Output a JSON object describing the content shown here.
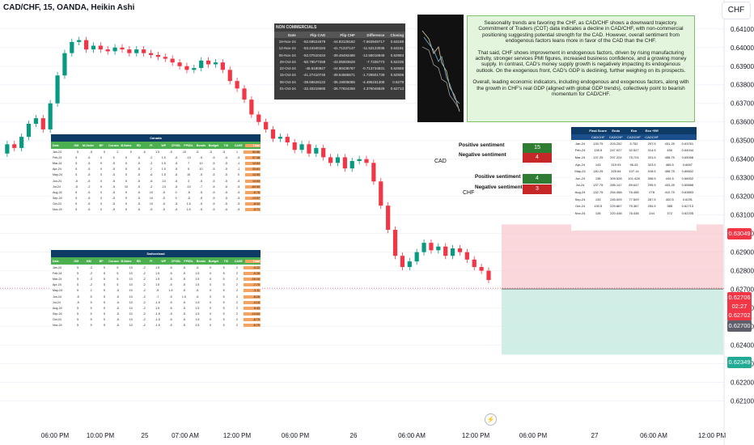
{
  "header": {
    "symbol": "CAD/CHF, 15, OANDA, Heikin Ashi",
    "currency": "CHF"
  },
  "chart_data": {
    "type": "candlestick",
    "y_ticks": [
      "0.64100",
      "0.64000",
      "0.63900",
      "0.63800",
      "0.63700",
      "0.63600",
      "0.63500",
      "0.63400",
      "0.63300",
      "0.63200",
      "0.63100",
      "0.63000",
      "0.62900",
      "0.62800",
      "0.62700",
      "0.62600",
      "0.62500",
      "0.62400",
      "0.62300",
      "0.62200",
      "0.62100"
    ],
    "ylim": [
      0.6205,
      0.6416
    ],
    "x_ticks": [
      "06:00 PM",
      "10:00 PM",
      "25",
      "07:00 AM",
      "12:00 PM",
      "06:00 PM",
      "26",
      "06:00 AM",
      "12:00 PM",
      "06:00 PM",
      "27",
      "06:00 AM",
      "12:00 PM"
    ],
    "price_path": [
      0.6343,
      0.6348,
      0.6346,
      0.6352,
      0.6359,
      0.6362,
      0.6356,
      0.637,
      0.6385,
      0.6397,
      0.6403,
      0.6404,
      0.6399,
      0.6401,
      0.6399,
      0.6398,
      0.64,
      0.6399,
      0.6397,
      0.6399,
      0.6397,
      0.6396,
      0.6395,
      0.6394,
      0.6392,
      0.639,
      0.6388,
      0.6389,
      0.6393,
      0.6391,
      0.6392,
      0.6388,
      0.6382,
      0.6378,
      0.6372,
      0.6364,
      0.636,
      0.6356,
      0.6351,
      0.6352,
      0.6349,
      0.6345,
      0.6348,
      0.6343,
      0.6346,
      0.6341,
      0.6338,
      0.6341,
      0.6335,
      0.6339,
      0.634,
      0.6338,
      0.6328,
      0.6315,
      0.6302,
      0.6288,
      0.6282,
      0.6285,
      0.629,
      0.6295,
      0.6291,
      0.6293,
      0.6288,
      0.6292,
      0.629,
      0.6286,
      0.6282,
      0.628,
      0.6275
    ],
    "price_labels": [
      {
        "value": "0.63049",
        "color": "#f23645"
      },
      {
        "value": "0.62706",
        "color": "#f23645"
      },
      {
        "value": "02:27",
        "color": "#f23645"
      },
      {
        "value": "0.62702",
        "color": "#f23645"
      },
      {
        "value": "0.62700",
        "color": "#5d606b"
      },
      {
        "value": "0.62349",
        "color": "#22ab94"
      }
    ],
    "position": {
      "stop": 0.63049,
      "entry": 0.62702,
      "target": 0.62349
    }
  },
  "non_commercials": {
    "title": "NON COMMERCIALS",
    "columns": [
      "Date",
      "Flip CAD",
      "Flip CHF",
      "Difference",
      "Closing"
    ],
    "rows": [
      [
        "19-Nov-24",
        "-52.69524679",
        "-44.83129182",
        "-7.863949717",
        "0.63189"
      ],
      [
        "12-Nov-24",
        "-53.24340183",
        "-41.71237147",
        "-11.53123036",
        "0.63191"
      ],
      [
        "05-Nov-24",
        "-52.07510434",
        "-39.49493486",
        "-12.58016948",
        "0.62993"
      ],
      [
        "29-Oct-24",
        "-50.78577268",
        "-43.05003628",
        "-7.7335773",
        "0.62235"
      ],
      [
        "22-Oct-24",
        "-45.6180927",
        "-44.90435787",
        "-0.713734831",
        "0.62558"
      ],
      [
        "15-Oct-24",
        "-41.27410745",
        "-39.54565571",
        "-1.728501739",
        "0.62508"
      ],
      [
        "08-Oct-24",
        "-39.68528122",
        "-35.19005085",
        "-4.495231308",
        "0.6279"
      ],
      [
        "01-Oct-24",
        "-32.40219585",
        "-36.77824268",
        "4.376046829",
        "0.62713"
      ]
    ]
  },
  "note": {
    "p1": "Seasonality trends are favoring the CHF, as CAD/CHF shows a downward trajectory. Commitment of Traders (COT) data indicates a decline in CAD/CHF, with non-commercial positioning suggesting potential strength for the CAD. However, overall sentiment from endogenous factors leans more in favor of the CAD than the CHF.",
    "p2": "That said, CHF shows improvement in endogenous factors, driven by rising manufacturing activity, stronger services PMI figures, increased business confidence, and a growing money supply. In contrast, CAD's money supply growth is negatively impacting its endogenous outlook. On the exogenous front, CAD's GDP is declining, further weighing on its prospects.",
    "p3": "Overall, leading economic indicators, including endogenous and exogenous factors, along with the growth in CHF's real GDP (aligned with global GDP trends), collectively point to bearish momentum for CAD/CHF."
  },
  "sentiment": {
    "cad": {
      "label": "CAD",
      "pos_label": "Positive sentiment",
      "neg_label": "Negative sentiment",
      "pos": "15",
      "neg": "4"
    },
    "chf": {
      "label": "CHF",
      "pos_label": "Positive sentiment",
      "neg_label": "Negative sentiment",
      "pos": "4",
      "neg": "3"
    },
    "pos_color": "#2e7d32",
    "neg_color": "#c62828"
  },
  "canada": {
    "title": "Canada",
    "columns": [
      "Date",
      "GM",
      "M-Order MM",
      "BP",
      "Cur.acc",
      "B.Sales",
      "RD",
      "FI",
      "WP",
      "CPI/DL",
      "PPI/DL",
      "Bonds",
      "Budget",
      "TXI",
      "CASE",
      "Total"
    ],
    "rows": [
      [
        "Jan-24",
        "5",
        "-5",
        "0",
        "2",
        "5",
        "-5",
        "1.5",
        "-5",
        "-10",
        "-5",
        "-5",
        "-5",
        "1",
        "53.86"
      ],
      [
        "Feb-24",
        "5",
        "-5",
        "0",
        "5",
        "5",
        "-5",
        "-2",
        "1.5",
        "-5",
        "-10",
        "-5",
        "-5",
        "-5",
        "-5",
        "57.48"
      ],
      [
        "Mar-24",
        "5",
        "-5",
        "0",
        "-5",
        "5",
        "-5",
        "-2",
        "1.5",
        "-5",
        "7",
        "10",
        "-5",
        "-5",
        "-1",
        "14.64"
      ],
      [
        "Apr-24",
        "5",
        "-5",
        "0",
        "-5",
        "5",
        "-5",
        "2",
        "1.5",
        "-5",
        "5",
        "10",
        "-5",
        "-5",
        "-1",
        "33.61"
      ],
      [
        "May-24",
        "5",
        "-5",
        "0",
        "-5",
        "5",
        "-5",
        "-6",
        "1.5",
        "-6",
        "10",
        "-5",
        "-5",
        "-5",
        "5",
        "13.50"
      ],
      [
        "Jun-24",
        "-5",
        "-5",
        "0",
        "-5",
        "5",
        "-5",
        "-6",
        "-13",
        "-5",
        "3",
        "-5",
        "-5",
        "-5",
        "-5",
        "14.63"
      ],
      [
        "Jul-24",
        "-5",
        "-2",
        "0",
        "-5",
        "10",
        "-5",
        "-2",
        "-13",
        "-5",
        "-10",
        "-7",
        "-5",
        "-5",
        "-5",
        "-64.90"
      ],
      [
        "Aug-24",
        "5",
        "-5",
        "0",
        "-5",
        "5",
        "-5",
        "10",
        "-5",
        "0",
        "-5",
        "-5",
        "-5",
        "-5",
        "-5",
        "-6.76"
      ],
      [
        "Sep-24",
        "5",
        "-5",
        "0",
        "-5",
        "5",
        "-5",
        "10",
        "-5",
        "0",
        "-5",
        "-5",
        "-5",
        "-5",
        "-5",
        "-13.57"
      ],
      [
        "Oct-24",
        "5",
        "-5",
        "0",
        "-5",
        "5",
        "-5",
        "10",
        "-5",
        "-5",
        "1.5",
        "-5",
        "-5",
        "-5",
        "-5",
        "-8.02"
      ],
      [
        "Nov-24",
        "5",
        "-5",
        "0",
        "-5",
        "5",
        "-5",
        "-5",
        "-5",
        "-5",
        "1.5",
        "-5",
        "-5",
        "-5",
        "-5",
        "-5.71"
      ]
    ]
  },
  "switzerland": {
    "title": "Switzerland",
    "columns": [
      "Date",
      "GM",
      "MM",
      "BP",
      "Cur.acc",
      "B.Sales",
      "RD",
      "FI",
      "WP",
      "CPI/DL",
      "PPI/DL",
      "Bonds",
      "Budget",
      "TXI",
      "CASE",
      "Total"
    ],
    "rows": [
      [
        "Jan-24",
        "5",
        "-2",
        "5",
        "5",
        "10",
        "-2",
        "1.5",
        "-5",
        "-5",
        "-5",
        "0",
        "5",
        "2",
        "-9.22"
      ],
      [
        "Feb-24",
        "5",
        "-2",
        "5",
        "5",
        "10",
        "-2",
        "1.5",
        "-5",
        "-5",
        "1.5",
        "0",
        "5",
        "2",
        "-9.28"
      ],
      [
        "Mar-24",
        "5",
        "-2",
        "5",
        "5",
        "10",
        "-2",
        "1.5",
        "-5",
        "-5",
        "1.5",
        "0",
        "5",
        "2",
        "-16.16"
      ],
      [
        "Apr-24",
        "5",
        "-2",
        "5",
        "5",
        "10",
        "-2",
        "1.5",
        "-5",
        "-5",
        "1.5",
        "0",
        "5",
        "2",
        "-7.70"
      ],
      [
        "May-24",
        "5",
        "2",
        "5",
        "-5",
        "10",
        "-2",
        "-5",
        "1.5",
        "-5",
        "-5",
        "0",
        "5",
        "2",
        "-3.11"
      ],
      [
        "Jun-24",
        "-5",
        "5",
        "5",
        "-5",
        "10",
        "-2",
        "-7",
        "-5",
        "1.5",
        "-5",
        "0",
        "5",
        "2",
        "-8.26"
      ],
      [
        "Jul-24",
        "-5",
        "5",
        "5",
        "-5",
        "10",
        "-2",
        "-1.5",
        "-5",
        "-5",
        "1.5",
        "0",
        "5",
        "2",
        "-4.18"
      ],
      [
        "Aug-24",
        "5",
        "5",
        "5",
        "-5",
        "10",
        "-2",
        "1.5",
        "-5",
        "-5",
        "1.5",
        "0",
        "5",
        "2",
        "6.43"
      ],
      [
        "Sep-24",
        "5",
        "5",
        "5",
        "-5",
        "10",
        "-2",
        "-1.5",
        "-5",
        "-5",
        "1.5",
        "0",
        "5",
        "2",
        "-14.64"
      ],
      [
        "Oct-24",
        "5",
        "5",
        "5",
        "-5",
        "10",
        "-2",
        "-1.5",
        "-5",
        "-5",
        "1.5",
        "0",
        "5",
        "2",
        "-6.79"
      ],
      [
        "Nov-24",
        "5",
        "5",
        "5",
        "-5",
        "10",
        "-2",
        "-1.5",
        "-5",
        "-5",
        "1.5",
        "0",
        "5",
        "2",
        "-6.75"
      ]
    ]
  },
  "cad_table": {
    "columns": [
      "",
      "Final Score",
      "Endo",
      "Exo",
      "Exo +Eff",
      ""
    ],
    "subheader": [
      "",
      "CADCHF",
      "CADCHF",
      "CADCHF",
      "CADCHF",
      ""
    ],
    "rows": [
      [
        "Jan-24",
        "133.75",
        "203.252",
        "5.752",
        "297.5",
        "431.25",
        "0.63761"
      ],
      [
        "Feb-24",
        "135.5",
        "247.027",
        "32.527",
        "314.5",
        "450",
        "0.64044"
      ],
      [
        "Mar-24",
        "137.25",
        "297.224",
        "75.724",
        "321.5",
        "458.75",
        "0.65058"
      ],
      [
        "Apr-24",
        "143",
        "319.93",
        "96.43",
        "323.5",
        "466.5",
        "0.6657"
      ],
      [
        "May-24",
        "140.25",
        "325.64",
        "107.14",
        "318.5",
        "458.75",
        "0.66602"
      ],
      [
        "Jun-24",
        "136",
        "309.528",
        "101.428",
        "308.5",
        "444.5",
        "0.66002"
      ],
      [
        "Jul-24",
        "137.75",
        "285.147",
        "89.647",
        "295.5",
        "433.25",
        "0.65688"
      ],
      [
        "Aug-24",
        "132.75",
        "254.458",
        "76.458",
        "278",
        "410.75",
        "0.63893"
      ],
      [
        "Sep-24",
        "133",
        "245.009",
        "77.509",
        "267.5",
        "400.5",
        "0.6291"
      ],
      [
        "Oct-24",
        "130.5",
        "229.867",
        "75.367",
        "254.5",
        "385",
        "0.62713"
      ],
      [
        "Nov-24",
        "128",
        "220.438",
        "76.438",
        "244",
        "372",
        "0.62235"
      ]
    ]
  },
  "footer_icon": "lightning-icon"
}
